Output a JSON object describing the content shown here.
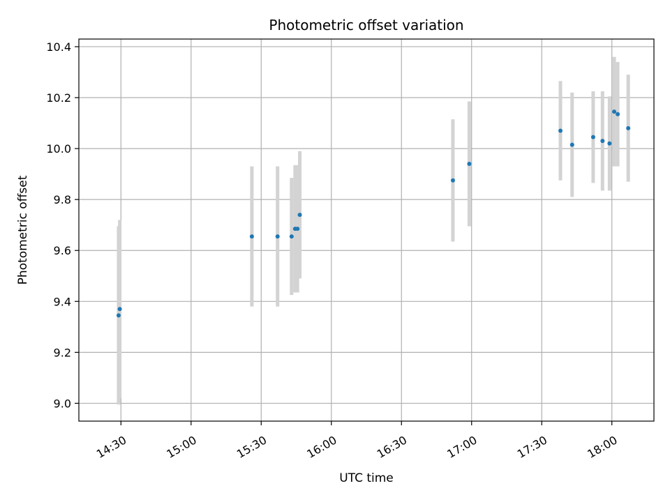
{
  "chart_data": {
    "type": "scatter",
    "title": "Photometric offset variation",
    "xlabel": "UTC time",
    "ylabel": "Photometric offset",
    "grid": true,
    "legend": "none",
    "x_axis": {
      "kind": "time",
      "ticks": [
        "14:30",
        "15:00",
        "15:30",
        "16:00",
        "16:30",
        "17:00",
        "17:30",
        "18:00"
      ],
      "xlim": [
        "14:12",
        "18:18"
      ]
    },
    "y_axis": {
      "ticks": [
        "9.0",
        "9.2",
        "9.4",
        "9.6",
        "9.8",
        "10.0",
        "10.2",
        "10.4"
      ],
      "ylim": [
        8.93,
        10.43
      ]
    },
    "colors": {
      "point": "#1f77b4",
      "errorbar": "#d3d3d3",
      "grid": "#b0b0b0"
    },
    "points": [
      {
        "x": "14:29",
        "y": 9.345,
        "yerr": 0.35
      },
      {
        "x": "14:29.5",
        "y": 9.37,
        "yerr": 0.35
      },
      {
        "x": "15:26",
        "y": 9.655,
        "yerr": 0.275
      },
      {
        "x": "15:37",
        "y": 9.655,
        "yerr": 0.275
      },
      {
        "x": "15:43",
        "y": 9.655,
        "yerr": 0.23
      },
      {
        "x": "15:44.5",
        "y": 9.685,
        "yerr": 0.25
      },
      {
        "x": "15:45.5",
        "y": 9.685,
        "yerr": 0.25
      },
      {
        "x": "15:46.5",
        "y": 9.74,
        "yerr": 0.25
      },
      {
        "x": "16:52",
        "y": 9.875,
        "yerr": 0.24
      },
      {
        "x": "16:59",
        "y": 9.94,
        "yerr": 0.245
      },
      {
        "x": "17:38",
        "y": 10.07,
        "yerr": 0.195
      },
      {
        "x": "17:43",
        "y": 10.015,
        "yerr": 0.205
      },
      {
        "x": "17:52",
        "y": 10.045,
        "yerr": 0.18
      },
      {
        "x": "17:56",
        "y": 10.03,
        "yerr": 0.195
      },
      {
        "x": "17:59",
        "y": 10.02,
        "yerr": 0.185
      },
      {
        "x": "18:01",
        "y": 10.145,
        "yerr": 0.215
      },
      {
        "x": "18:02.5",
        "y": 10.135,
        "yerr": 0.205
      },
      {
        "x": "18:07",
        "y": 10.08,
        "yerr": 0.21
      }
    ]
  }
}
